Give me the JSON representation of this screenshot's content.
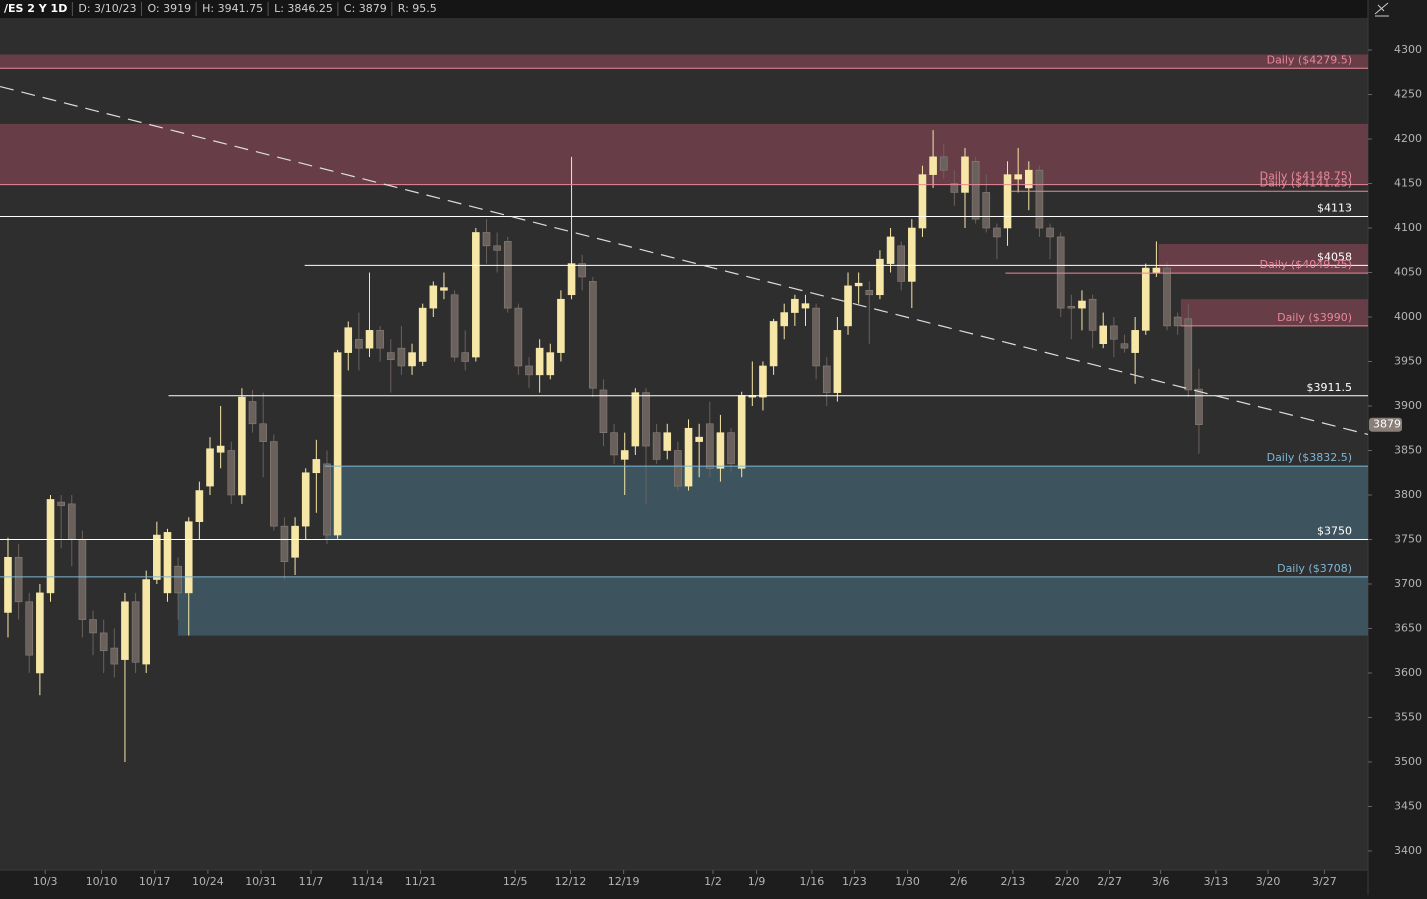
{
  "chart_data": {
    "type": "candlestick",
    "header": [
      "/ES 2 Y 1D",
      "D: 3/10/23",
      "O: 3919",
      "H: 3941.75",
      "L: 3846.25",
      "C: 3879",
      "R: 95.5"
    ],
    "x": [
      0,
      1,
      2,
      3,
      4,
      5,
      6,
      7,
      8,
      9,
      10,
      11,
      12,
      13,
      14,
      15,
      16,
      17,
      18,
      19,
      20,
      21,
      22,
      23,
      24,
      25,
      26,
      27,
      28,
      29,
      30,
      31,
      32,
      33,
      34,
      35,
      36,
      37,
      38,
      39,
      40,
      41,
      42,
      43,
      44,
      45,
      46,
      47,
      48,
      49,
      50,
      51,
      52,
      53,
      54,
      55,
      56,
      57,
      58,
      59,
      60,
      61,
      62,
      63,
      64,
      65,
      66,
      67,
      68,
      69,
      70,
      71,
      72,
      73,
      74,
      75,
      76,
      77,
      78,
      79,
      80,
      81,
      82,
      83,
      84,
      85,
      86,
      87,
      88,
      89,
      90,
      91,
      92,
      93,
      94,
      95,
      96,
      97,
      98,
      99,
      100,
      101,
      102,
      103,
      104,
      105,
      106,
      107,
      108,
      109,
      110,
      111,
      112
    ],
    "open": [
      3668,
      3730,
      3680,
      3600,
      3690,
      3792,
      3790,
      3750,
      3660,
      3645,
      3628,
      3615,
      3680,
      3610,
      3705,
      3690,
      3720,
      3690,
      3770,
      3810,
      3848,
      3850,
      3800,
      3905,
      3880,
      3860,
      3765,
      3730,
      3765,
      3825,
      3835,
      3755,
      3960,
      3975,
      3965,
      3985,
      3960,
      3965,
      3945,
      3950,
      4010,
      4030,
      4025,
      3960,
      3955,
      4095,
      4080,
      4085,
      4010,
      3945,
      3935,
      3935,
      3960,
      4025,
      4060,
      4040,
      3918,
      3870,
      3840,
      3855,
      3915,
      3870,
      3850,
      3850,
      3810,
      3860,
      3880,
      3830,
      3870,
      3830,
      3910,
      3910,
      3945,
      3990,
      4005,
      4010,
      4010,
      3945,
      3915,
      3990,
      4035,
      4030,
      4025,
      4060,
      4080,
      4040,
      4100,
      4160,
      4180,
      4150,
      4140,
      4175,
      4140,
      4100,
      4100,
      4155,
      4145,
      4165,
      4100,
      4090,
      4012,
      4010,
      4020,
      3970,
      3990,
      3970,
      3960,
      3985,
      4050,
      4055,
      4000,
      3998,
      3919
    ],
    "high": [
      3752,
      3745,
      3690,
      3700,
      3800,
      3800,
      3800,
      3760,
      3670,
      3660,
      3650,
      3690,
      3690,
      3715,
      3770,
      3762,
      3730,
      3775,
      3815,
      3865,
      3900,
      3860,
      3920,
      3918,
      3915,
      3868,
      3775,
      3775,
      3830,
      3862,
      3850,
      3963,
      3995,
      4005,
      4050,
      3990,
      3975,
      3990,
      3970,
      4015,
      4040,
      4050,
      4030,
      3985,
      4100,
      4110,
      4095,
      4090,
      4015,
      3955,
      3975,
      3970,
      4030,
      4180,
      4070,
      4045,
      3930,
      3880,
      3870,
      3920,
      3920,
      3880,
      3880,
      3860,
      3885,
      3880,
      3905,
      3890,
      3875,
      3916,
      3950,
      3950,
      3998,
      4015,
      4025,
      4025,
      4015,
      3955,
      4000,
      4050,
      4050,
      4040,
      4075,
      4100,
      4085,
      4110,
      4170,
      4210,
      4195,
      4165,
      4190,
      4180,
      4160,
      4105,
      4175,
      4190,
      4175,
      4170,
      4105,
      4095,
      4025,
      4030,
      4025,
      4005,
      4000,
      3980,
      4000,
      4060,
      4085,
      4062,
      4005,
      4015,
      3941.75
    ],
    "low": [
      3640,
      3660,
      3600,
      3575,
      3680,
      3740,
      3720,
      3640,
      3620,
      3600,
      3595,
      3500,
      3600,
      3600,
      3700,
      3680,
      3660,
      3642,
      3750,
      3800,
      3830,
      3790,
      3790,
      3870,
      3820,
      3760,
      3705,
      3710,
      3750,
      3780,
      3745,
      3750,
      3940,
      3940,
      3955,
      3950,
      3915,
      3935,
      3935,
      3945,
      4000,
      4020,
      3950,
      3940,
      3950,
      4060,
      4050,
      4005,
      3935,
      3920,
      3915,
      3930,
      3950,
      4020,
      4030,
      3910,
      3855,
      3835,
      3800,
      3845,
      3790,
      3835,
      3840,
      3805,
      3805,
      3820,
      3820,
      3815,
      3825,
      3820,
      3900,
      3895,
      3935,
      3975,
      3990,
      3990,
      3930,
      3900,
      3905,
      3980,
      4015,
      3970,
      4020,
      4050,
      4030,
      4010,
      4090,
      4145,
      4155,
      4125,
      4100,
      4105,
      4095,
      4065,
      4080,
      4140,
      4120,
      4090,
      4065,
      4000,
      3975,
      3985,
      3965,
      3965,
      3955,
      3960,
      3925,
      3980,
      4045,
      3985,
      3980,
      3910,
      3846.25
    ],
    "close": [
      3730,
      3680,
      3620,
      3690,
      3795,
      3788,
      3750,
      3660,
      3645,
      3625,
      3610,
      3680,
      3612,
      3705,
      3755,
      3758,
      3690,
      3770,
      3805,
      3852,
      3855,
      3800,
      3910,
      3880,
      3860,
      3765,
      3725,
      3765,
      3825,
      3840,
      3755,
      3960,
      3988,
      3965,
      3985,
      3965,
      3952,
      3945,
      3960,
      4010,
      4035,
      4033,
      3955,
      3950,
      4095,
      4080,
      4075,
      4010,
      3945,
      3935,
      3965,
      3960,
      4020,
      4060,
      4045,
      3920,
      3870,
      3845,
      3850,
      3915,
      3855,
      3840,
      3870,
      3810,
      3875,
      3865,
      3830,
      3870,
      3835,
      3912,
      3912,
      3945,
      3995,
      4005,
      4020,
      4015,
      3945,
      3915,
      3985,
      4035,
      4038,
      4025,
      4065,
      4090,
      4040,
      4100,
      4160,
      4180,
      4165,
      4140,
      4180,
      4110,
      4100,
      4090,
      4160,
      4160,
      4165,
      4100,
      4090,
      4010,
      4010,
      4018,
      3985,
      3990,
      3975,
      3965,
      3985,
      4055,
      4055,
      3990,
      3990,
      3918,
      3879
    ],
    "up_color": "#f6e7a6",
    "down_color": "#6a615c",
    "xlim": [
      -0.75,
      127.9
    ],
    "xticks": [
      {
        "value": 3.5,
        "label": "10/3"
      },
      {
        "value": 8.8,
        "label": "10/10"
      },
      {
        "value": 13.8,
        "label": "10/17"
      },
      {
        "value": 18.8,
        "label": "10/24"
      },
      {
        "value": 23.8,
        "label": "10/31"
      },
      {
        "value": 28.5,
        "label": "11/7"
      },
      {
        "value": 33.8,
        "label": "11/14"
      },
      {
        "value": 38.8,
        "label": "11/21"
      },
      {
        "value": 47.7,
        "label": "12/5"
      },
      {
        "value": 52.9,
        "label": "12/12"
      },
      {
        "value": 57.9,
        "label": "12/19"
      },
      {
        "value": 66.3,
        "label": "1/2"
      },
      {
        "value": 70.4,
        "label": "1/9"
      },
      {
        "value": 75.6,
        "label": "1/16"
      },
      {
        "value": 79.6,
        "label": "1/23"
      },
      {
        "value": 84.6,
        "label": "1/30"
      },
      {
        "value": 89.4,
        "label": "2/6"
      },
      {
        "value": 94.5,
        "label": "2/13"
      },
      {
        "value": 99.6,
        "label": "2/20"
      },
      {
        "value": 103.6,
        "label": "2/27"
      },
      {
        "value": 108.4,
        "label": "3/6"
      },
      {
        "value": 113.6,
        "label": "3/13"
      },
      {
        "value": 118.5,
        "label": "3/20"
      },
      {
        "value": 123.8,
        "label": "3/27"
      }
    ],
    "ylim": [
      3378.6,
      4336
    ],
    "yticks": [
      3400,
      3450,
      3500,
      3550,
      3600,
      3650,
      3700,
      3750,
      3800,
      3850,
      3900,
      3950,
      4000,
      4050,
      4100,
      4150,
      4200,
      4250,
      4300
    ],
    "zones": [
      {
        "from": -0.75,
        "low": 4279.5,
        "high": 4295,
        "color": "#6e3f4a"
      },
      {
        "from": -0.75,
        "low": 4148.75,
        "high": 4217,
        "color": "#6e3f4a"
      },
      {
        "from": 108.2,
        "low": 4049.25,
        "high": 4082,
        "color": "#6e3f4a"
      },
      {
        "from": 110.3,
        "low": 3990,
        "high": 4020,
        "color": "#6e3f4a"
      },
      {
        "from": 29.8,
        "low": 3750,
        "high": 3832.5,
        "color": "#3f5964"
      },
      {
        "from": 16,
        "low": 3642,
        "high": 3708,
        "color": "#3f5964"
      }
    ],
    "levels": [
      {
        "label": "Daily ($4279.5)",
        "value": 4279.5,
        "from": -0.75,
        "color": "#e8889a"
      },
      {
        "label": "Daily ($4148.75)",
        "value": 4148.75,
        "from": -0.75,
        "color": "#e8889a"
      },
      {
        "label": "Daily ($4141.25)",
        "value": 4141.25,
        "from": 94.3,
        "color": "#e8889a"
      },
      {
        "label": "$4113",
        "value": 4113,
        "from": -0.75,
        "color": "#ffffff"
      },
      {
        "label": "$4058",
        "value": 4058,
        "from": 27.9,
        "color": "#ffffff"
      },
      {
        "label": "Daily ($4049.25)",
        "value": 4049.25,
        "from": 93.8,
        "color": "#e8889a"
      },
      {
        "label": "Daily ($3990)",
        "value": 3990,
        "from": 110.3,
        "color": "#e8889a"
      },
      {
        "label": "$3911.5",
        "value": 3911.5,
        "from": 15.1,
        "color": "#ffffff"
      },
      {
        "label": "Daily ($3832.5)",
        "value": 3832.5,
        "from": 29.8,
        "color": "#7fb6d6"
      },
      {
        "label": "$3750",
        "value": 3750,
        "from": -0.75,
        "color": "#ffffff"
      },
      {
        "label": "Daily ($3708)",
        "value": 3708,
        "from": -0.75,
        "color": "#7fb6d6"
      }
    ],
    "trendline": {
      "x": [
        -0.75,
        127.9
      ],
      "y": [
        4259,
        3868
      ],
      "color": "#dddddd"
    }
  }
}
